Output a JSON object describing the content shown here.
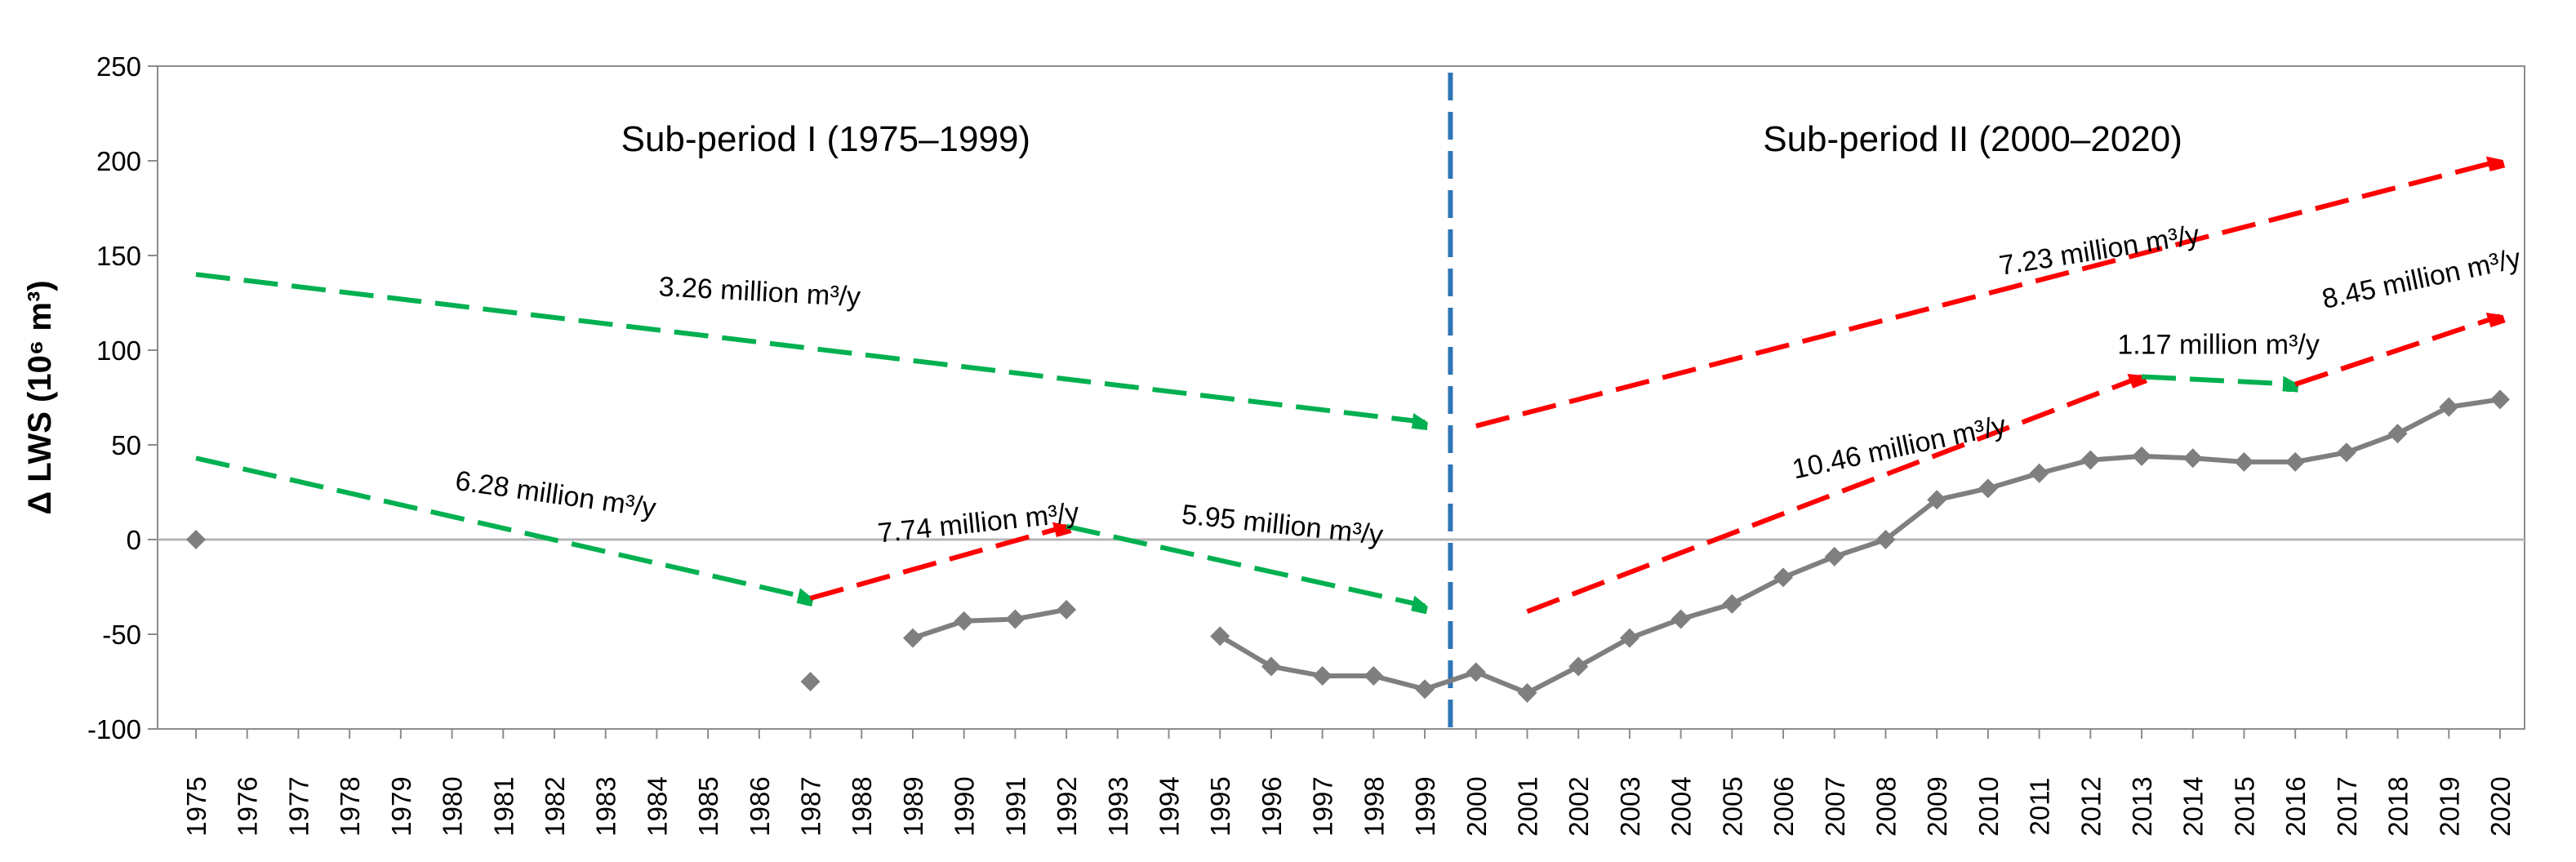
{
  "chart_data": {
    "type": "line",
    "title": "",
    "xlabel": "",
    "ylabel": "Δ LWS (10⁶ m³)",
    "ylim": [
      -100,
      250
    ],
    "yticks": [
      -100,
      -50,
      0,
      50,
      100,
      150,
      200,
      250
    ],
    "ytick_labels": [
      "-100",
      "-50",
      "0",
      "50",
      "100",
      "150",
      "200",
      "250"
    ],
    "xlim": [
      1975,
      2020
    ],
    "xtick_labels": [
      "1975",
      "1976",
      "1977",
      "1978",
      "1979",
      "1980",
      "1981",
      "1982",
      "1983",
      "1984",
      "1985",
      "1986",
      "1987",
      "1988",
      "1989",
      "1990",
      "1991",
      "1992",
      "1993",
      "1994",
      "1995",
      "1996",
      "1997",
      "1998",
      "1999",
      "2000",
      "2001",
      "2002",
      "2003",
      "2004",
      "2005",
      "2006",
      "2007",
      "2008",
      "2009",
      "2010",
      "2011",
      "2012",
      "2013",
      "2014",
      "2015",
      "2016",
      "2017",
      "2018",
      "2019",
      "2020"
    ],
    "series": [
      {
        "name": "Δ LWS",
        "color": "#7f7f7f",
        "marker": "diamond",
        "points": [
          {
            "x": 1975,
            "y": 0
          },
          {
            "x": 1987,
            "y": -75
          },
          {
            "x": 1989,
            "y": -52
          },
          {
            "x": 1990,
            "y": -43
          },
          {
            "x": 1991,
            "y": -42
          },
          {
            "x": 1992,
            "y": -37
          },
          {
            "x": 1995,
            "y": -51
          },
          {
            "x": 1996,
            "y": -67
          },
          {
            "x": 1997,
            "y": -72
          },
          {
            "x": 1998,
            "y": -72
          },
          {
            "x": 1999,
            "y": -79
          },
          {
            "x": 2000,
            "y": -70
          },
          {
            "x": 2001,
            "y": -81
          },
          {
            "x": 2002,
            "y": -67
          },
          {
            "x": 2003,
            "y": -52
          },
          {
            "x": 2004,
            "y": -42
          },
          {
            "x": 2005,
            "y": -34
          },
          {
            "x": 2006,
            "y": -20
          },
          {
            "x": 2007,
            "y": -9
          },
          {
            "x": 2008,
            "y": 0
          },
          {
            "x": 2009,
            "y": 21
          },
          {
            "x": 2010,
            "y": 27
          },
          {
            "x": 2011,
            "y": 35
          },
          {
            "x": 2012,
            "y": 42
          },
          {
            "x": 2013,
            "y": 44
          },
          {
            "x": 2014,
            "y": 43
          },
          {
            "x": 2015,
            "y": 41
          },
          {
            "x": 2016,
            "y": 41
          },
          {
            "x": 2017,
            "y": 46
          },
          {
            "x": 2018,
            "y": 56
          },
          {
            "x": 2019,
            "y": 70
          },
          {
            "x": 2020,
            "y": 74
          }
        ],
        "segments": [
          [
            1975
          ],
          [
            1987
          ],
          [
            1989,
            1990,
            1991,
            1992
          ],
          [
            1995,
            1996,
            1997,
            1998,
            1999,
            2000,
            2001,
            2002,
            2003,
            2004,
            2005,
            2006,
            2007,
            2008,
            2009,
            2010,
            2011,
            2012,
            2013,
            2014,
            2015,
            2016,
            2017,
            2018,
            2019,
            2020
          ]
        ]
      }
    ],
    "divider": {
      "x": 1999.5,
      "color": "#2e75b6",
      "style": "dashed"
    },
    "periods": [
      {
        "label": "Sub-period I (1975–1999)",
        "x": 1987.3,
        "y": 212
      },
      {
        "label": "Sub-period II (2000–2020)",
        "x": 2009.7,
        "y": 212
      }
    ],
    "trends": [
      {
        "kind": "decrease",
        "color": "#00b050",
        "x1": 1975,
        "y1": 140,
        "x2": 1999,
        "y2": 62,
        "label": "3.26 million m³/y",
        "lx": 1986,
        "ly": 126,
        "angle": 3
      },
      {
        "kind": "decrease",
        "color": "#00b050",
        "x1": 1975,
        "y1": 43,
        "x2": 1987,
        "y2": -31,
        "label": "6.28 million m³/y",
        "lx": 1982,
        "ly": 19,
        "angle": 8
      },
      {
        "kind": "increase",
        "color": "#ff0000",
        "x1": 1987,
        "y1": -31,
        "x2": 1992,
        "y2": 7,
        "label": "7.74 million m³/y",
        "lx": 1990.3,
        "ly": 4,
        "angle": -6
      },
      {
        "kind": "decrease",
        "color": "#00b050",
        "x1": 1992,
        "y1": 7,
        "x2": 1999,
        "y2": -35,
        "label": "5.95 million m³/y",
        "lx": 1996.2,
        "ly": 3,
        "angle": 6
      },
      {
        "kind": "increase",
        "color": "#ff0000",
        "x1": 2000,
        "y1": 60,
        "x2": 2020,
        "y2": 200,
        "label": "7.23 million m³/y",
        "lx": 2012.2,
        "ly": 148,
        "angle": -9
      },
      {
        "kind": "increase",
        "color": "#ff0000",
        "x1": 2001,
        "y1": -38,
        "x2": 2013,
        "y2": 86,
        "label": "10.46 million m³/y",
        "lx": 2008.3,
        "ly": 44,
        "angle": -12
      },
      {
        "kind": "decrease",
        "color": "#00b050",
        "x1": 2013,
        "y1": 86,
        "x2": 2016,
        "y2": 82,
        "label": "1.17 million m³/y",
        "lx": 2014.5,
        "ly": 98,
        "angle": 0
      },
      {
        "kind": "increase",
        "color": "#ff0000",
        "x1": 2016,
        "y1": 82,
        "x2": 2020,
        "y2": 118,
        "label": "8.45 million m³/y",
        "lx": 2018.5,
        "ly": 133,
        "angle": -12
      }
    ]
  }
}
